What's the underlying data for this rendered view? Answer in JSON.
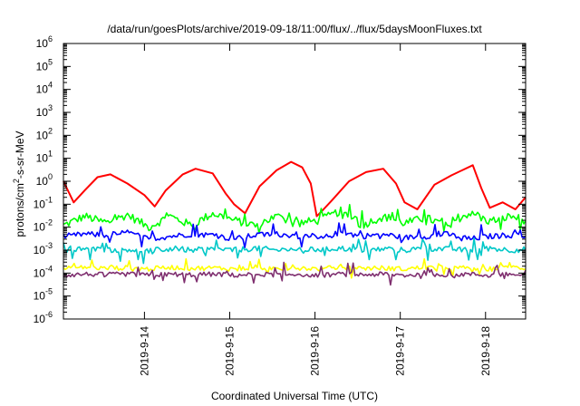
{
  "chart_data": {
    "type": "line",
    "title": "/data/run/goesPlots/archive/2019-09-18/11:00/flux/../flux/5daysMoonFluxes.txt",
    "xlabel": "Coordinated Universal Time (UTC)",
    "ylabel": "protons/cm2-s-sr-MeV",
    "ylabel_parts": {
      "pre": "protons/cm",
      "sup": "2",
      "post": "-s-sr-MeV"
    },
    "yscale": "log",
    "ylim_exp": [
      -6,
      6
    ],
    "ytick_exponents": [
      -6,
      -5,
      -4,
      -3,
      -2,
      -1,
      0,
      1,
      2,
      3,
      4,
      5,
      6
    ],
    "ytick_base": "10",
    "xlim_days": [
      13.05,
      18.47
    ],
    "x_ticks": [
      {
        "day": 14,
        "label": "2019-9-14"
      },
      {
        "day": 15,
        "label": "2019-9-15"
      },
      {
        "day": 16,
        "label": "2019-9-16"
      },
      {
        "day": 17,
        "label": "2019-9-17"
      },
      {
        "day": 18,
        "label": "2019-9-18"
      }
    ],
    "grid": false,
    "legend": "none",
    "series": [
      {
        "color": "#ff0000",
        "x": [
          13.05,
          13.17,
          13.3,
          13.45,
          13.6,
          13.8,
          14.0,
          14.12,
          14.25,
          14.45,
          14.6,
          14.8,
          14.95,
          15.05,
          15.18,
          15.35,
          15.55,
          15.72,
          15.85,
          15.95,
          16.02,
          16.08,
          16.2,
          16.4,
          16.6,
          16.8,
          16.95,
          17.05,
          17.2,
          17.4,
          17.6,
          17.85,
          17.95,
          18.05,
          18.2,
          18.35,
          18.47
        ],
        "y": [
          1.0,
          0.12,
          0.4,
          1.5,
          2.0,
          0.8,
          0.25,
          0.08,
          0.4,
          2.0,
          3.5,
          2.2,
          0.3,
          0.1,
          0.04,
          0.6,
          3.0,
          7.0,
          4.0,
          0.8,
          0.03,
          0.05,
          0.15,
          1.0,
          2.5,
          3.5,
          0.8,
          0.12,
          0.06,
          0.7,
          1.8,
          5.0,
          0.5,
          0.07,
          0.12,
          0.06,
          0.2
        ]
      },
      {
        "color": "#00ff00",
        "x": [
          13.05,
          13.3,
          13.55,
          13.8,
          14.05,
          14.3,
          14.55,
          14.8,
          15.05,
          15.3,
          15.55,
          15.8,
          16.05,
          16.3,
          16.55,
          16.8,
          17.05,
          17.3,
          17.55,
          17.8,
          18.05,
          18.3,
          18.47
        ],
        "y": [
          0.012,
          0.03,
          0.015,
          0.035,
          0.01,
          0.03,
          0.012,
          0.04,
          0.02,
          0.012,
          0.03,
          0.015,
          0.02,
          0.05,
          0.012,
          0.03,
          0.015,
          0.025,
          0.012,
          0.04,
          0.018,
          0.03,
          0.02
        ],
        "noise": 0.18,
        "spikes": 0.55
      },
      {
        "color": "#0000ff",
        "x": [
          13.05,
          13.3,
          13.55,
          13.8,
          14.05,
          14.3,
          14.55,
          14.8,
          15.05,
          15.3,
          15.55,
          15.8,
          16.05,
          16.3,
          16.55,
          16.8,
          17.05,
          17.3,
          17.55,
          17.8,
          18.05,
          18.3,
          18.47
        ],
        "y": [
          0.004,
          0.005,
          0.0045,
          0.006,
          0.003,
          0.004,
          0.005,
          0.0045,
          0.003,
          0.0045,
          0.005,
          0.004,
          0.003,
          0.006,
          0.004,
          0.005,
          0.0035,
          0.004,
          0.005,
          0.003,
          0.004,
          0.0045,
          0.004
        ],
        "noise": 0.12,
        "spikes": 0.5
      },
      {
        "color": "#00c8c8",
        "x": [
          13.05,
          13.3,
          13.55,
          13.8,
          14.05,
          14.3,
          14.55,
          14.8,
          15.05,
          15.3,
          15.55,
          15.8,
          16.05,
          16.3,
          16.55,
          16.8,
          17.05,
          17.3,
          17.55,
          17.8,
          18.05,
          18.3,
          18.47
        ],
        "y": [
          0.001,
          0.0012,
          0.001,
          0.0011,
          0.0009,
          0.0012,
          0.001,
          0.0011,
          0.001,
          0.0012,
          0.001,
          0.0011,
          0.001,
          0.0012,
          0.001,
          0.0011,
          0.001,
          0.0012,
          0.0011,
          0.001,
          0.0012,
          0.001,
          0.0011
        ],
        "noise": 0.12,
        "spikes": 0.5
      },
      {
        "color": "#ffff00",
        "x": [
          13.05,
          13.3,
          13.55,
          13.8,
          14.05,
          14.3,
          14.55,
          14.8,
          15.05,
          15.3,
          15.55,
          15.8,
          16.05,
          16.3,
          16.55,
          16.8,
          17.05,
          17.3,
          17.55,
          17.8,
          18.05,
          18.3,
          18.47
        ],
        "y": [
          0.00015,
          0.00018,
          0.00016,
          0.00017,
          0.00015,
          0.00018,
          0.00016,
          0.00017,
          0.00015,
          0.00018,
          0.00016,
          0.00017,
          0.00015,
          0.00018,
          0.00016,
          0.00017,
          0.00015,
          0.00018,
          0.00016,
          0.00017,
          0.00015,
          0.00018,
          0.00016
        ],
        "noise": 0.1,
        "spikes": 0.35
      },
      {
        "color": "#7f2f6f",
        "x": [
          13.05,
          13.3,
          13.55,
          13.8,
          14.05,
          14.3,
          14.55,
          14.8,
          15.05,
          15.3,
          15.55,
          15.8,
          16.05,
          16.3,
          16.55,
          16.8,
          17.05,
          17.3,
          17.55,
          17.8,
          18.05,
          18.3,
          18.47
        ],
        "y": [
          8e-05,
          9e-05,
          8.5e-05,
          9e-05,
          8e-05,
          9e-05,
          8.5e-05,
          9e-05,
          8e-05,
          9e-05,
          8.5e-05,
          9e-05,
          8e-05,
          9e-05,
          8.5e-05,
          9e-05,
          8e-05,
          9e-05,
          8.5e-05,
          9e-05,
          8e-05,
          9e-05,
          8.5e-05
        ],
        "noise": 0.1,
        "spikes": 0.45
      }
    ]
  }
}
